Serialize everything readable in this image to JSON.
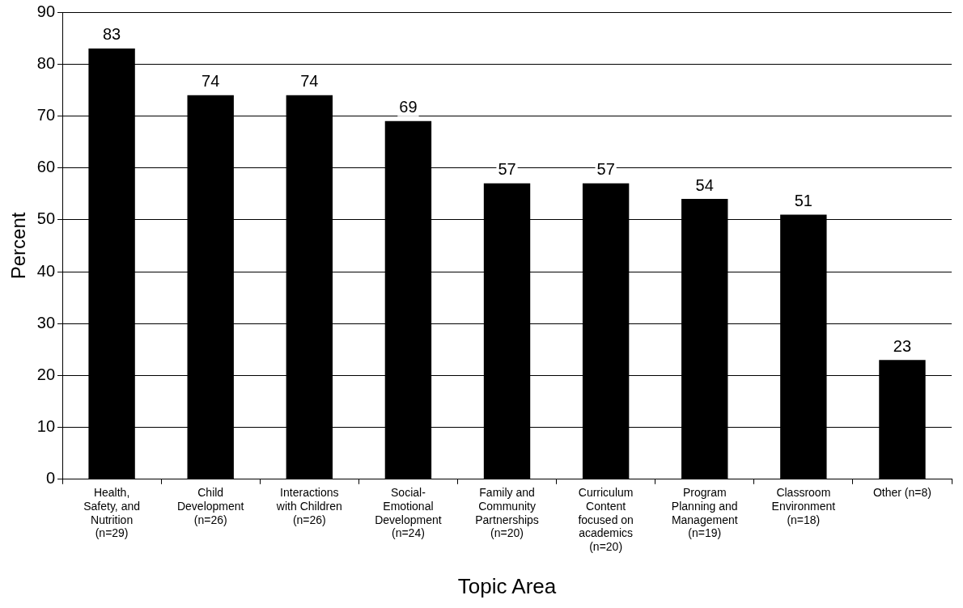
{
  "chart_data": {
    "type": "bar",
    "xlabel": "Topic Area",
    "ylabel": "Percent",
    "categories": [
      "Health,\nSafety, and\nNutrition\n(n=29)",
      "Child\nDevelopment\n(n=26)",
      "Interactions\nwith Children\n(n=26)",
      "Social-\nEmotional\nDevelopment\n(n=24)",
      "Family and\nCommunity\nPartnerships\n(n=20)",
      "Curriculum\nContent\nfocused on\nacademics\n(n=20)",
      "Program\nPlanning and\nManagement\n(n=19)",
      "Classroom\nEnvironment\n(n=18)",
      "Other (n=8)"
    ],
    "values": [
      83,
      74,
      74,
      69,
      57,
      57,
      54,
      51,
      23
    ],
    "color": "#000000",
    "ylim": [
      0,
      90
    ],
    "yticks": [
      0,
      10,
      20,
      30,
      40,
      50,
      60,
      70,
      80,
      90
    ],
    "grid": "y",
    "data_labels": true
  }
}
